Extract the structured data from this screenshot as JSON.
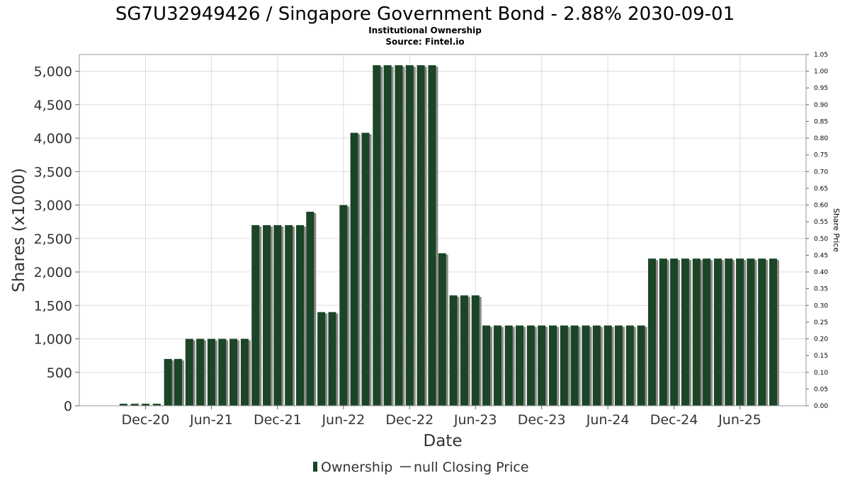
{
  "chart_data": {
    "type": "bar",
    "title": "SG7U32949426 / Singapore Government Bond - 2.88% 2030-09-01",
    "subtitle": "Institutional Ownership",
    "source": "Source: Fintel.io",
    "xlabel": "Date",
    "ylabel": "Shares (x1000)",
    "y2label": "Share Price",
    "ylim": [
      0,
      5250
    ],
    "y2lim": [
      0,
      1.05
    ],
    "grid": true,
    "legend_position": "bottom-center",
    "colors": {
      "bar": "#1b4526",
      "bar_shadow": "#8a8a8a",
      "grid": "#dcdcdc"
    },
    "yticks": [
      "0",
      "500",
      "1,000",
      "1,500",
      "2,000",
      "2,500",
      "3,000",
      "3,500",
      "4,000",
      "4,500",
      "5,000"
    ],
    "y2ticks": [
      "0.00",
      "0.05",
      "0.10",
      "0.15",
      "0.20",
      "0.25",
      "0.30",
      "0.35",
      "0.40",
      "0.45",
      "0.50",
      "0.55",
      "0.60",
      "0.65",
      "0.70",
      "0.75",
      "0.80",
      "0.85",
      "0.90",
      "0.95",
      "1.00",
      "1.05"
    ],
    "xticks": [
      {
        "label": "Dec-20",
        "date": "2020-12-01"
      },
      {
        "label": "Jun-21",
        "date": "2021-06-01"
      },
      {
        "label": "Dec-21",
        "date": "2021-12-01"
      },
      {
        "label": "Jun-22",
        "date": "2022-06-01"
      },
      {
        "label": "Dec-22",
        "date": "2022-12-01"
      },
      {
        "label": "Jun-23",
        "date": "2023-06-01"
      },
      {
        "label": "Dec-23",
        "date": "2023-12-01"
      },
      {
        "label": "Jun-24",
        "date": "2024-06-01"
      },
      {
        "label": "Dec-24",
        "date": "2024-12-01"
      },
      {
        "label": "Jun-25",
        "date": "2025-06-01"
      }
    ],
    "xlim": [
      "2020-06-01",
      "2025-12-01"
    ],
    "series": [
      {
        "name": "Ownership",
        "x": [
          "2020-10-01",
          "2020-11-01",
          "2020-12-01",
          "2021-01-01",
          "2021-02-01",
          "2021-03-01",
          "2021-04-01",
          "2021-05-01",
          "2021-06-01",
          "2021-07-01",
          "2021-08-01",
          "2021-09-01",
          "2021-10-01",
          "2021-11-01",
          "2021-12-01",
          "2022-01-01",
          "2022-02-01",
          "2022-03-01",
          "2022-04-01",
          "2022-05-01",
          "2022-06-01",
          "2022-07-01",
          "2022-08-01",
          "2022-09-01",
          "2022-10-01",
          "2022-11-01",
          "2022-12-01",
          "2023-01-01",
          "2023-02-01",
          "2023-03-01",
          "2023-04-01",
          "2023-05-01",
          "2023-06-01",
          "2023-07-01",
          "2023-08-01",
          "2023-09-01",
          "2023-10-01",
          "2023-11-01",
          "2023-12-01",
          "2024-01-01",
          "2024-02-01",
          "2024-03-01",
          "2024-04-01",
          "2024-05-01",
          "2024-06-01",
          "2024-07-01",
          "2024-08-01",
          "2024-09-01",
          "2024-10-01",
          "2024-11-01",
          "2024-12-01",
          "2025-01-01",
          "2025-02-01",
          "2025-03-01",
          "2025-04-01",
          "2025-05-01",
          "2025-06-01",
          "2025-07-01",
          "2025-08-01",
          "2025-09-01"
        ],
        "values": [
          30,
          30,
          30,
          30,
          700,
          700,
          1000,
          1000,
          1000,
          1000,
          1000,
          1000,
          2700,
          2700,
          2700,
          2700,
          2700,
          2900,
          1400,
          1400,
          3000,
          4080,
          4080,
          5090,
          5090,
          5090,
          5090,
          5090,
          5090,
          2280,
          1650,
          1650,
          1650,
          1200,
          1200,
          1200,
          1200,
          1200,
          1200,
          1200,
          1200,
          1200,
          1200,
          1200,
          1200,
          1200,
          1200,
          1200,
          2200,
          2200,
          2200,
          2200,
          2200,
          2200,
          2200,
          2200,
          2200,
          2200,
          2200,
          2200
        ]
      }
    ],
    "legend": [
      {
        "label": "Ownership",
        "kind": "bar"
      },
      {
        "label": "null Closing Price",
        "kind": "line"
      }
    ]
  }
}
